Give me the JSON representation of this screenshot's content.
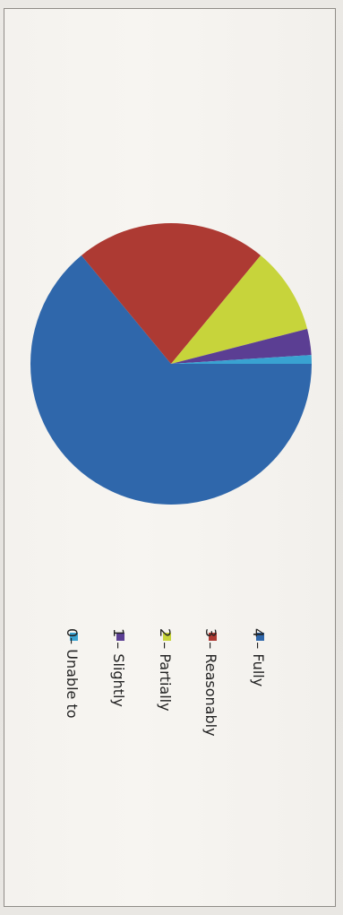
{
  "chart_data": {
    "type": "pie",
    "orientation": "rotated 90 degrees clockwise",
    "title": "",
    "legend_position": "bottom",
    "slices": [
      {
        "label": "4 – Fully",
        "value": 64,
        "color": "#2f67ab"
      },
      {
        "label": "3 – Reasonably",
        "value": 22,
        "color": "#ad3a33"
      },
      {
        "label": "2 – Partially",
        "value": 10,
        "color": "#c7d43b"
      },
      {
        "label": "1 – Slightly",
        "value": 3,
        "color": "#5b3e93"
      },
      {
        "label": "0– Unable to",
        "value": 1,
        "color": "#39a2d1"
      }
    ]
  }
}
